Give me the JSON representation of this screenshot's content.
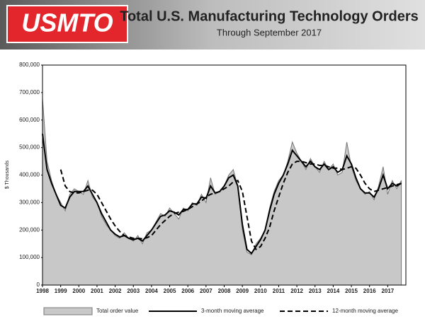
{
  "logo": "USMTO",
  "chart_data": {
    "type": "line",
    "title": "Total U.S. Manufacturing Technology Orders",
    "subtitle": "Through September 2017",
    "y_label": "$ Thousands",
    "x": [
      1998,
      1998.25,
      1998.5,
      1998.75,
      1999,
      1999.25,
      1999.5,
      1999.75,
      2000,
      2000.25,
      2000.5,
      2000.75,
      2001,
      2001.25,
      2001.5,
      2001.75,
      2002,
      2002.25,
      2002.5,
      2002.75,
      2003,
      2003.25,
      2003.5,
      2003.75,
      2004,
      2004.25,
      2004.5,
      2004.75,
      2005,
      2005.25,
      2005.5,
      2005.75,
      2006,
      2006.25,
      2006.5,
      2006.75,
      2007,
      2007.25,
      2007.5,
      2007.75,
      2008,
      2008.25,
      2008.5,
      2008.75,
      2009,
      2009.25,
      2009.5,
      2009.75,
      2010,
      2010.25,
      2010.5,
      2010.75,
      2011,
      2011.25,
      2011.5,
      2011.75,
      2012,
      2012.25,
      2012.5,
      2012.75,
      2013,
      2013.25,
      2013.5,
      2013.75,
      2014,
      2014.25,
      2014.5,
      2014.75,
      2015,
      2015.25,
      2015.5,
      2015.75,
      2016,
      2016.25,
      2016.5,
      2016.75,
      2017,
      2017.25,
      2017.5,
      2017.75
    ],
    "series": [
      {
        "name": "Total order value",
        "style": "area",
        "color": "#c8c8c8",
        "values": [
          680000,
          450000,
          380000,
          330000,
          300000,
          270000,
          330000,
          350000,
          340000,
          330000,
          380000,
          320000,
          300000,
          250000,
          220000,
          200000,
          180000,
          170000,
          190000,
          170000,
          160000,
          180000,
          150000,
          190000,
          200000,
          230000,
          260000,
          250000,
          280000,
          260000,
          240000,
          280000,
          270000,
          300000,
          290000,
          330000,
          300000,
          390000,
          330000,
          340000,
          360000,
          400000,
          420000,
          360000,
          200000,
          120000,
          110000,
          150000,
          170000,
          200000,
          280000,
          340000,
          380000,
          400000,
          450000,
          520000,
          480000,
          450000,
          420000,
          460000,
          430000,
          410000,
          450000,
          420000,
          440000,
          400000,
          410000,
          520000,
          430000,
          380000,
          350000,
          330000,
          340000,
          310000,
          360000,
          430000,
          330000,
          380000,
          350000,
          380000
        ]
      },
      {
        "name": "3-month moving average",
        "style": "solid",
        "color": "#000000",
        "values": [
          550000,
          420000,
          370000,
          330000,
          290000,
          280000,
          320000,
          340000,
          340000,
          340000,
          360000,
          330000,
          300000,
          260000,
          230000,
          200000,
          185000,
          175000,
          180000,
          170000,
          165000,
          170000,
          160000,
          180000,
          200000,
          225000,
          250000,
          255000,
          270000,
          265000,
          255000,
          275000,
          275000,
          295000,
          295000,
          320000,
          315000,
          360000,
          335000,
          340000,
          360000,
          390000,
          400000,
          360000,
          220000,
          130000,
          115000,
          140000,
          165000,
          200000,
          270000,
          330000,
          370000,
          400000,
          440000,
          490000,
          470000,
          450000,
          430000,
          450000,
          430000,
          420000,
          440000,
          420000,
          430000,
          410000,
          420000,
          470000,
          440000,
          390000,
          350000,
          335000,
          335000,
          320000,
          350000,
          400000,
          350000,
          370000,
          360000,
          370000
        ]
      },
      {
        "name": "12-month moving average",
        "style": "dashed",
        "color": "#000000",
        "values": [
          null,
          null,
          null,
          null,
          420000,
          360000,
          340000,
          335000,
          335000,
          340000,
          345000,
          345000,
          330000,
          300000,
          270000,
          240000,
          215000,
          195000,
          180000,
          175000,
          170000,
          170000,
          168000,
          172000,
          180000,
          200000,
          220000,
          235000,
          250000,
          260000,
          265000,
          268000,
          275000,
          285000,
          295000,
          305000,
          320000,
          330000,
          335000,
          340000,
          350000,
          360000,
          375000,
          380000,
          340000,
          250000,
          160000,
          130000,
          140000,
          170000,
          210000,
          270000,
          320000,
          370000,
          410000,
          440000,
          450000,
          450000,
          445000,
          440000,
          440000,
          435000,
          435000,
          430000,
          425000,
          425000,
          420000,
          425000,
          430000,
          425000,
          400000,
          370000,
          350000,
          340000,
          345000,
          350000,
          355000,
          360000,
          365000,
          370000
        ]
      }
    ],
    "xlim": [
      1998,
      2018
    ],
    "xticks": [
      1998,
      1999,
      2000,
      2001,
      2002,
      2003,
      2004,
      2005,
      2006,
      2007,
      2008,
      2009,
      2010,
      2011,
      2012,
      2013,
      2014,
      2015,
      2016,
      2017
    ],
    "ylim": [
      0,
      800000
    ],
    "yticks": [
      0,
      {
        "value": 100000,
        "label": "100,000"
      },
      {
        "value": 200000,
        "label": "200,000"
      },
      {
        "value": 300000,
        "label": "300,000"
      },
      {
        "value": 400000,
        "label": "400,000"
      },
      {
        "value": 500000,
        "label": "500,000"
      },
      {
        "value": 600000,
        "label": "600,000"
      },
      {
        "value": 700000,
        "label": "700,000"
      },
      {
        "value": 800000,
        "label": "800,000"
      }
    ],
    "grid": false,
    "legend": "bottom"
  }
}
